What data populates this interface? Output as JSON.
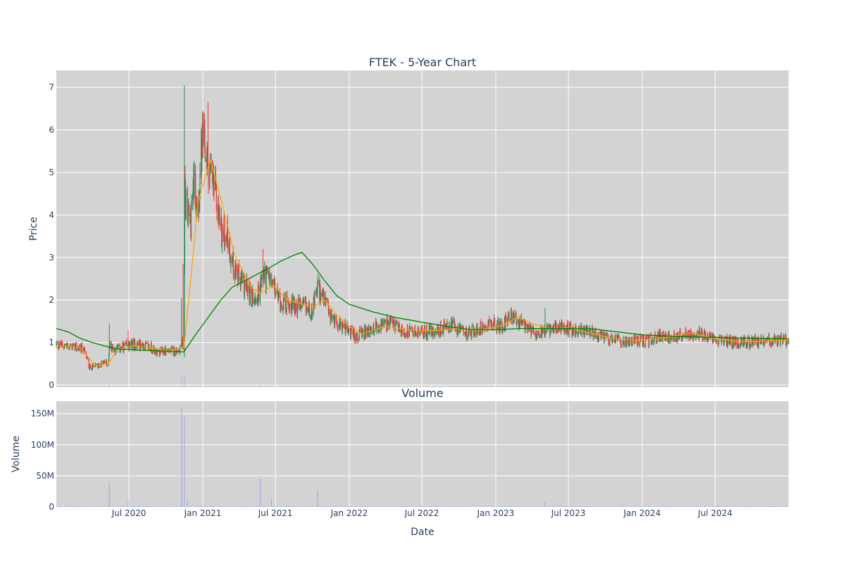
{
  "chart_data": {
    "type": "candlestick",
    "title": "FTEK - 5-Year Chart",
    "subplot_titles": [
      "Volume"
    ],
    "xlabel": "Date",
    "price_panel": {
      "ylabel": "Price",
      "ylim": [
        -0.05,
        7.4
      ],
      "yticks": [
        0,
        1,
        2,
        3,
        4,
        5,
        6,
        7
      ],
      "background": "#d3d3d3",
      "grid": true
    },
    "volume_panel": {
      "ylabel": "Volume",
      "ylim": [
        0,
        170
      ],
      "yticks": [
        0,
        50,
        100,
        150
      ],
      "ytick_labels": [
        "0",
        "50M",
        "100M",
        "150M"
      ],
      "background": "#d3d3d3",
      "grid": true
    },
    "x_range": [
      "2020-01-02",
      "2024-12-31"
    ],
    "x_ticks": [
      {
        "date": "2020-07-01",
        "label": "Jul 2020"
      },
      {
        "date": "2021-01-01",
        "label": "Jan 2021"
      },
      {
        "date": "2021-07-01",
        "label": "Jul 2021"
      },
      {
        "date": "2022-01-01",
        "label": "Jan 2022"
      },
      {
        "date": "2022-07-01",
        "label": "Jul 2022"
      },
      {
        "date": "2023-01-01",
        "label": "Jan 2023"
      },
      {
        "date": "2023-07-01",
        "label": "Jul 2023"
      },
      {
        "date": "2024-01-01",
        "label": "Jan 2024"
      },
      {
        "date": "2024-07-01",
        "label": "Jul 2024"
      }
    ],
    "colors": {
      "increasing": "#2e8b57",
      "decreasing": "#f03a3a",
      "ma_short": "#ffa500",
      "ma_long": "#008000",
      "volume": "#9aa0f0"
    },
    "close_anchors": [
      [
        "2020-01-02",
        0.95
      ],
      [
        "2020-02-15",
        0.9
      ],
      [
        "2020-03-10",
        0.85
      ],
      [
        "2020-03-25",
        0.42
      ],
      [
        "2020-04-15",
        0.45
      ],
      [
        "2020-05-01",
        0.55
      ],
      [
        "2020-05-10",
        0.48
      ],
      [
        "2020-05-14",
        0.95
      ],
      [
        "2020-05-25",
        0.85
      ],
      [
        "2020-06-10",
        0.85
      ],
      [
        "2020-06-20",
        0.9
      ],
      [
        "2020-07-10",
        0.95
      ],
      [
        "2020-08-01",
        0.95
      ],
      [
        "2020-08-25",
        0.88
      ],
      [
        "2020-09-10",
        0.75
      ],
      [
        "2020-10-01",
        0.82
      ],
      [
        "2020-10-20",
        0.8
      ],
      [
        "2020-11-05",
        0.85
      ],
      [
        "2020-11-10",
        1.0
      ],
      [
        "2020-11-15",
        0.88
      ],
      [
        "2020-11-17",
        4.6
      ],
      [
        "2020-11-20",
        4.2
      ],
      [
        "2020-12-01",
        3.8
      ],
      [
        "2020-12-10",
        4.8
      ],
      [
        "2020-12-20",
        4.2
      ],
      [
        "2021-01-01",
        5.8
      ],
      [
        "2021-01-10",
        5.3
      ],
      [
        "2021-01-20",
        5.0
      ],
      [
        "2021-02-01",
        4.5
      ],
      [
        "2021-02-10",
        4.0
      ],
      [
        "2021-02-20",
        3.5
      ],
      [
        "2021-03-01",
        3.6
      ],
      [
        "2021-03-15",
        2.9
      ],
      [
        "2021-04-01",
        2.5
      ],
      [
        "2021-04-15",
        2.35
      ],
      [
        "2021-05-01",
        2.1
      ],
      [
        "2021-05-15",
        2.0
      ],
      [
        "2021-06-01",
        2.6
      ],
      [
        "2021-06-15",
        2.5
      ],
      [
        "2021-07-01",
        2.2
      ],
      [
        "2021-07-15",
        1.95
      ],
      [
        "2021-08-01",
        1.9
      ],
      [
        "2021-09-01",
        1.85
      ],
      [
        "2021-10-01",
        1.75
      ],
      [
        "2021-10-15",
        2.3
      ],
      [
        "2021-11-01",
        1.95
      ],
      [
        "2021-11-15",
        1.6
      ],
      [
        "2021-12-15",
        1.4
      ],
      [
        "2022-01-15",
        1.15
      ],
      [
        "2022-02-15",
        1.25
      ],
      [
        "2022-03-15",
        1.4
      ],
      [
        "2022-04-15",
        1.45
      ],
      [
        "2022-05-15",
        1.25
      ],
      [
        "2022-06-15",
        1.25
      ],
      [
        "2022-07-15",
        1.25
      ],
      [
        "2022-08-15",
        1.3
      ],
      [
        "2022-09-15",
        1.4
      ],
      [
        "2022-10-15",
        1.2
      ],
      [
        "2022-11-15",
        1.3
      ],
      [
        "2022-12-15",
        1.5
      ],
      [
        "2023-01-15",
        1.35
      ],
      [
        "2023-02-01",
        1.65
      ],
      [
        "2023-02-20",
        1.55
      ],
      [
        "2023-03-15",
        1.35
      ],
      [
        "2023-04-15",
        1.25
      ],
      [
        "2023-05-15",
        1.3
      ],
      [
        "2023-06-15",
        1.35
      ],
      [
        "2023-07-15",
        1.3
      ],
      [
        "2023-08-15",
        1.25
      ],
      [
        "2023-09-15",
        1.15
      ],
      [
        "2023-10-15",
        1.05
      ],
      [
        "2023-11-15",
        1.05
      ],
      [
        "2023-12-15",
        1.05
      ],
      [
        "2024-01-15",
        1.05
      ],
      [
        "2024-02-15",
        1.15
      ],
      [
        "2024-03-15",
        1.1
      ],
      [
        "2024-04-15",
        1.2
      ],
      [
        "2024-05-15",
        1.25
      ],
      [
        "2024-06-15",
        1.1
      ],
      [
        "2024-07-15",
        1.05
      ],
      [
        "2024-08-15",
        1.02
      ],
      [
        "2024-09-15",
        1.0
      ],
      [
        "2024-10-15",
        1.05
      ],
      [
        "2024-11-15",
        1.05
      ],
      [
        "2024-12-31",
        1.05
      ]
    ],
    "spikes": [
      {
        "date": "2020-05-14",
        "high": 1.45
      },
      {
        "date": "2020-06-28",
        "high": 1.3
      },
      {
        "date": "2020-11-08",
        "high": 2.05
      },
      {
        "date": "2020-11-14",
        "high": 2.85
      },
      {
        "date": "2020-11-17",
        "high": 7.05
      },
      {
        "date": "2021-01-05",
        "high": 6.4
      },
      {
        "date": "2021-01-15",
        "high": 6.65
      },
      {
        "date": "2021-06-01",
        "high": 3.2
      },
      {
        "date": "2021-10-15",
        "high": 2.5
      },
      {
        "date": "2023-05-05",
        "high": 1.82
      }
    ],
    "ma_short_anchors": [
      [
        "2020-01-02",
        0.93
      ],
      [
        "2020-03-01",
        0.88
      ],
      [
        "2020-04-10",
        0.45
      ],
      [
        "2020-05-10",
        0.5
      ],
      [
        "2020-06-01",
        0.82
      ],
      [
        "2020-07-15",
        0.93
      ],
      [
        "2020-09-01",
        0.85
      ],
      [
        "2020-10-15",
        0.8
      ],
      [
        "2020-11-15",
        0.88
      ],
      [
        "2020-12-01",
        2.4
      ],
      [
        "2020-12-20",
        4.3
      ],
      [
        "2021-01-20",
        5.3
      ],
      [
        "2021-02-20",
        4.2
      ],
      [
        "2021-03-20",
        3.1
      ],
      [
        "2021-05-01",
        2.3
      ],
      [
        "2021-05-25",
        2.15
      ],
      [
        "2021-06-25",
        2.35
      ],
      [
        "2021-08-01",
        2.0
      ],
      [
        "2021-09-01",
        1.92
      ],
      [
        "2021-10-01",
        1.82
      ],
      [
        "2021-11-01",
        2.0
      ],
      [
        "2021-12-01",
        1.65
      ],
      [
        "2022-01-01",
        1.38
      ],
      [
        "2022-02-01",
        1.2
      ],
      [
        "2022-04-01",
        1.38
      ],
      [
        "2022-06-01",
        1.3
      ],
      [
        "2022-08-01",
        1.28
      ],
      [
        "2022-10-01",
        1.33
      ],
      [
        "2022-11-15",
        1.27
      ],
      [
        "2023-01-15",
        1.4
      ],
      [
        "2023-02-25",
        1.6
      ],
      [
        "2023-04-01",
        1.45
      ],
      [
        "2023-05-15",
        1.32
      ],
      [
        "2023-07-01",
        1.35
      ],
      [
        "2023-09-01",
        1.2
      ],
      [
        "2023-11-01",
        1.08
      ],
      [
        "2024-01-01",
        1.05
      ],
      [
        "2024-03-01",
        1.12
      ],
      [
        "2024-05-01",
        1.22
      ],
      [
        "2024-07-01",
        1.1
      ],
      [
        "2024-09-01",
        1.02
      ],
      [
        "2024-12-31",
        1.05
      ]
    ],
    "ma_long_anchors": [
      [
        "2020-01-02",
        1.33
      ],
      [
        "2020-02-01",
        1.25
      ],
      [
        "2020-03-01",
        1.1
      ],
      [
        "2020-04-01",
        1.0
      ],
      [
        "2020-05-01",
        0.92
      ],
      [
        "2020-06-01",
        0.85
      ],
      [
        "2020-08-01",
        0.82
      ],
      [
        "2020-10-01",
        0.8
      ],
      [
        "2020-11-15",
        0.78
      ],
      [
        "2020-12-15",
        1.2
      ],
      [
        "2021-01-15",
        1.6
      ],
      [
        "2021-02-15",
        2.0
      ],
      [
        "2021-03-15",
        2.3
      ],
      [
        "2021-04-15",
        2.45
      ],
      [
        "2021-05-15",
        2.6
      ],
      [
        "2021-06-15",
        2.75
      ],
      [
        "2021-07-15",
        2.92
      ],
      [
        "2021-08-15",
        3.05
      ],
      [
        "2021-09-05",
        3.12
      ],
      [
        "2021-10-01",
        2.85
      ],
      [
        "2021-11-01",
        2.45
      ],
      [
        "2021-12-01",
        2.1
      ],
      [
        "2022-01-01",
        1.9
      ],
      [
        "2022-03-01",
        1.72
      ],
      [
        "2022-05-01",
        1.58
      ],
      [
        "2022-07-01",
        1.48
      ],
      [
        "2022-09-01",
        1.38
      ],
      [
        "2022-11-01",
        1.3
      ],
      [
        "2023-01-01",
        1.3
      ],
      [
        "2023-03-01",
        1.33
      ],
      [
        "2023-05-01",
        1.33
      ],
      [
        "2023-07-01",
        1.33
      ],
      [
        "2023-09-01",
        1.32
      ],
      [
        "2023-11-01",
        1.25
      ],
      [
        "2024-01-01",
        1.18
      ],
      [
        "2024-04-01",
        1.14
      ],
      [
        "2024-07-01",
        1.12
      ],
      [
        "2024-10-01",
        1.1
      ],
      [
        "2024-12-31",
        1.09
      ]
    ],
    "volume_baseline_M": 0.8,
    "volume_spikes_M": [
      {
        "date": "2020-05-14",
        "value": 40
      },
      {
        "date": "2020-06-28",
        "value": 10
      },
      {
        "date": "2020-11-10",
        "value": 160
      },
      {
        "date": "2020-11-17",
        "value": 145
      },
      {
        "date": "2020-11-25",
        "value": 12
      },
      {
        "date": "2021-05-25",
        "value": 45
      },
      {
        "date": "2021-06-20",
        "value": 13
      },
      {
        "date": "2021-10-15",
        "value": 27
      },
      {
        "date": "2023-05-05",
        "value": 8
      }
    ]
  }
}
